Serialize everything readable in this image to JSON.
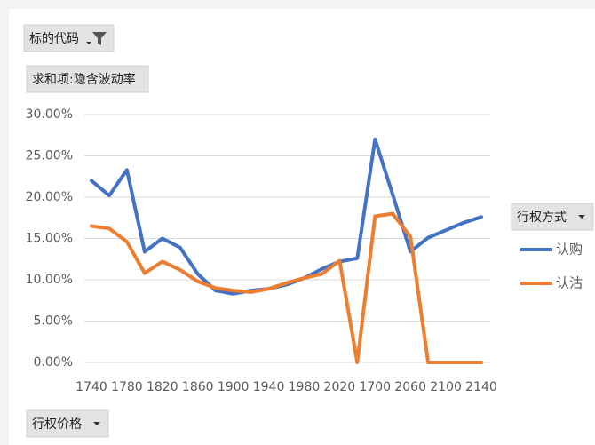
{
  "chart_data": {
    "type": "line",
    "filter_field": "标的代码",
    "value_field": "求和项:隐含波动率",
    "legend_title": "行权方式",
    "axis_field": "行权价格",
    "categories": [
      "1740",
      null,
      "1780",
      null,
      "1820",
      null,
      "1860",
      null,
      "1900",
      null,
      "1940",
      null,
      "1980",
      null,
      "2020",
      null,
      "1700",
      null,
      "2060",
      null,
      "2100",
      null,
      "2140"
    ],
    "series": [
      {
        "name": "认购",
        "color": "#4472c4",
        "values": [
          22.0,
          20.2,
          23.3,
          13.4,
          15.0,
          13.9,
          10.7,
          8.7,
          8.3,
          8.7,
          8.9,
          9.4,
          10.2,
          11.3,
          12.2,
          12.6,
          27.0,
          20.3,
          13.4,
          15.1,
          16.0,
          16.9,
          17.6
        ]
      },
      {
        "name": "认沽",
        "color": "#ed7d31",
        "values": [
          16.5,
          16.2,
          14.6,
          10.8,
          12.2,
          11.2,
          9.8,
          9.0,
          8.7,
          8.5,
          8.9,
          9.6,
          10.2,
          10.7,
          12.3,
          0,
          17.7,
          18.0,
          15.2,
          0,
          0,
          0,
          0
        ]
      }
    ],
    "ylim": [
      0,
      30
    ],
    "yticks": [
      {
        "value": 0,
        "label": "0.00%"
      },
      {
        "value": 5,
        "label": "5.00%"
      },
      {
        "value": 10,
        "label": "10.00%"
      },
      {
        "value": 15,
        "label": "15.00%"
      },
      {
        "value": 20,
        "label": "20.00%"
      },
      {
        "value": 25,
        "label": "25.00%"
      },
      {
        "value": 30,
        "label": "30.00%"
      }
    ],
    "grid": true
  }
}
